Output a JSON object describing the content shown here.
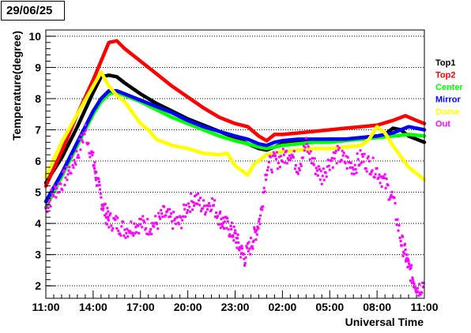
{
  "date_label": "29/06/25",
  "chart_data": {
    "type": "scatter",
    "xlabel": "Universal Time",
    "ylabel": "Temperature(degree)",
    "x_ticks": [
      "11:00",
      "14:00",
      "17:00",
      "20:00",
      "23:00",
      "02:00",
      "05:00",
      "08:00",
      "11:00"
    ],
    "x_tick_hours": [
      0,
      3,
      6,
      9,
      12,
      15,
      18,
      21,
      24
    ],
    "y_ticks": [
      2,
      3,
      4,
      5,
      6,
      7,
      8,
      9,
      10
    ],
    "xlim": [
      0,
      24
    ],
    "ylim": [
      1.6,
      10.2
    ],
    "grid": "horizontal-dotted",
    "legend_position": "right",
    "series": [
      {
        "name": "Top1",
        "color": "#000000",
        "points": [
          [
            0,
            5.3
          ],
          [
            1,
            6.1
          ],
          [
            2,
            7.1
          ],
          [
            3,
            8.2
          ],
          [
            3.5,
            8.7
          ],
          [
            4,
            8.75
          ],
          [
            4.5,
            8.7
          ],
          [
            5,
            8.5
          ],
          [
            6,
            8.15
          ],
          [
            7,
            7.85
          ],
          [
            8,
            7.6
          ],
          [
            9,
            7.35
          ],
          [
            10,
            7.15
          ],
          [
            11,
            6.95
          ],
          [
            12,
            6.75
          ],
          [
            12.8,
            6.55
          ],
          [
            13.5,
            6.4
          ],
          [
            14,
            6.35
          ],
          [
            14.5,
            6.45
          ],
          [
            15,
            6.55
          ],
          [
            16,
            6.6
          ],
          [
            17,
            6.65
          ],
          [
            18,
            6.7
          ],
          [
            19,
            6.7
          ],
          [
            20,
            6.75
          ],
          [
            21,
            6.8
          ],
          [
            21.5,
            6.85
          ],
          [
            22,
            7.05
          ],
          [
            22.5,
            7.0
          ],
          [
            23,
            6.8
          ],
          [
            24,
            6.6
          ]
        ]
      },
      {
        "name": "Top2",
        "color": "#ff0000",
        "points": [
          [
            0,
            5.2
          ],
          [
            1,
            6.3
          ],
          [
            2,
            7.5
          ],
          [
            3,
            8.6
          ],
          [
            3.5,
            9.2
          ],
          [
            4,
            9.8
          ],
          [
            4.5,
            9.85
          ],
          [
            5,
            9.6
          ],
          [
            6,
            9.2
          ],
          [
            7,
            8.8
          ],
          [
            8,
            8.4
          ],
          [
            9,
            8.05
          ],
          [
            10,
            7.7
          ],
          [
            11,
            7.4
          ],
          [
            12,
            7.2
          ],
          [
            12.8,
            7.1
          ],
          [
            13.5,
            6.8
          ],
          [
            14,
            6.65
          ],
          [
            14.5,
            6.85
          ],
          [
            15,
            6.85
          ],
          [
            16,
            6.9
          ],
          [
            17,
            6.95
          ],
          [
            18,
            7.0
          ],
          [
            19,
            7.05
          ],
          [
            20,
            7.1
          ],
          [
            21,
            7.15
          ],
          [
            22,
            7.3
          ],
          [
            22.8,
            7.45
          ],
          [
            23.5,
            7.3
          ],
          [
            24,
            7.2
          ]
        ]
      },
      {
        "name": "Center",
        "color": "#00ff00",
        "points": [
          [
            0,
            4.5
          ],
          [
            1,
            5.5
          ],
          [
            2,
            6.5
          ],
          [
            3,
            7.5
          ],
          [
            3.5,
            7.9
          ],
          [
            4,
            8.15
          ],
          [
            4.5,
            8.2
          ],
          [
            5,
            8.1
          ],
          [
            6,
            7.9
          ],
          [
            7,
            7.65
          ],
          [
            8,
            7.4
          ],
          [
            9,
            7.2
          ],
          [
            10,
            7.0
          ],
          [
            11,
            6.8
          ],
          [
            12,
            6.65
          ],
          [
            12.8,
            6.55
          ],
          [
            13.5,
            6.45
          ],
          [
            14,
            6.4
          ],
          [
            14.5,
            6.45
          ],
          [
            15,
            6.5
          ],
          [
            16,
            6.55
          ],
          [
            17,
            6.6
          ],
          [
            18,
            6.6
          ],
          [
            19,
            6.65
          ],
          [
            20,
            6.7
          ],
          [
            21,
            6.75
          ],
          [
            22,
            6.8
          ],
          [
            23,
            6.85
          ],
          [
            24,
            6.8
          ]
        ]
      },
      {
        "name": "Mirror",
        "color": "#0000ff",
        "points": [
          [
            0,
            4.7
          ],
          [
            1,
            5.6
          ],
          [
            2,
            6.6
          ],
          [
            3,
            7.6
          ],
          [
            3.5,
            8.0
          ],
          [
            4,
            8.25
          ],
          [
            4.5,
            8.25
          ],
          [
            5,
            8.15
          ],
          [
            6,
            7.95
          ],
          [
            7,
            7.75
          ],
          [
            8,
            7.55
          ],
          [
            9,
            7.3
          ],
          [
            10,
            7.1
          ],
          [
            11,
            6.95
          ],
          [
            12,
            6.8
          ],
          [
            12.8,
            6.7
          ],
          [
            13.5,
            6.55
          ],
          [
            14,
            6.5
          ],
          [
            14.5,
            6.6
          ],
          [
            15,
            6.65
          ],
          [
            16,
            6.7
          ],
          [
            17,
            6.7
          ],
          [
            18,
            6.7
          ],
          [
            19,
            6.7
          ],
          [
            20,
            6.75
          ],
          [
            21,
            6.8
          ],
          [
            22,
            6.9
          ],
          [
            22.5,
            7.0
          ],
          [
            23,
            7.1
          ],
          [
            24,
            7.0
          ]
        ]
      },
      {
        "name": "Dome",
        "color": "#ffff00",
        "points": [
          [
            0,
            5.5
          ],
          [
            1,
            6.6
          ],
          [
            2,
            7.5
          ],
          [
            3,
            8.4
          ],
          [
            3.5,
            8.85
          ],
          [
            4,
            8.4
          ],
          [
            4.5,
            8.1
          ],
          [
            5,
            7.9
          ],
          [
            5.5,
            7.55
          ],
          [
            6,
            7.2
          ],
          [
            6.5,
            7.0
          ],
          [
            7,
            6.7
          ],
          [
            8,
            6.5
          ],
          [
            9,
            6.4
          ],
          [
            10,
            6.25
          ],
          [
            11,
            6.2
          ],
          [
            11.5,
            6.25
          ],
          [
            12,
            5.85
          ],
          [
            12.8,
            5.55
          ],
          [
            13.2,
            5.9
          ],
          [
            14,
            6.2
          ],
          [
            15,
            6.3
          ],
          [
            16,
            6.35
          ],
          [
            17,
            6.4
          ],
          [
            18,
            6.4
          ],
          [
            19,
            6.45
          ],
          [
            20,
            6.5
          ],
          [
            20.5,
            6.7
          ],
          [
            21,
            7.1
          ],
          [
            21.5,
            6.9
          ],
          [
            22,
            6.5
          ],
          [
            23,
            5.8
          ],
          [
            24,
            5.4
          ]
        ]
      },
      {
        "name": "Out",
        "color": "#ff00ff",
        "points": [
          [
            0,
            4.5
          ],
          [
            0.5,
            5.0
          ],
          [
            1,
            5.3
          ],
          [
            1.5,
            5.7
          ],
          [
            2,
            6.2
          ],
          [
            2.5,
            7.0
          ],
          [
            3,
            6.0
          ],
          [
            3.2,
            5.5
          ],
          [
            3.5,
            4.8
          ],
          [
            3.8,
            4.3
          ],
          [
            4,
            4.1
          ],
          [
            4.5,
            4.0
          ],
          [
            5,
            3.8
          ],
          [
            5.5,
            3.9
          ],
          [
            6,
            4.0
          ],
          [
            6.5,
            3.9
          ],
          [
            7,
            4.0
          ],
          [
            7.5,
            4.3
          ],
          [
            8,
            4.1
          ],
          [
            8.5,
            4.0
          ],
          [
            9,
            4.6
          ],
          [
            9.5,
            4.8
          ],
          [
            10,
            4.5
          ],
          [
            10.5,
            4.7
          ],
          [
            11,
            4.2
          ],
          [
            11.3,
            4.0
          ],
          [
            11.7,
            3.8
          ],
          [
            12,
            3.6
          ],
          [
            12.3,
            3.2
          ],
          [
            12.6,
            2.9
          ],
          [
            13,
            3.3
          ],
          [
            13.3,
            3.7
          ],
          [
            13.6,
            4.2
          ],
          [
            14,
            5.8
          ],
          [
            14.5,
            6.0
          ],
          [
            15,
            6.1
          ],
          [
            15.5,
            6.3
          ],
          [
            16,
            5.8
          ],
          [
            16.5,
            6.5
          ],
          [
            17,
            5.9
          ],
          [
            17.5,
            5.5
          ],
          [
            18,
            6.0
          ],
          [
            18.5,
            6.2
          ],
          [
            19,
            6.0
          ],
          [
            19.5,
            5.8
          ],
          [
            20,
            6.1
          ],
          [
            20.5,
            5.9
          ],
          [
            21,
            5.7
          ],
          [
            21.5,
            5.3
          ],
          [
            22,
            4.8
          ],
          [
            22.5,
            3.5
          ],
          [
            22.8,
            3.0
          ],
          [
            23,
            2.6
          ],
          [
            23.3,
            2.2
          ],
          [
            23.6,
            1.9
          ],
          [
            24,
            2.1
          ]
        ]
      }
    ]
  }
}
